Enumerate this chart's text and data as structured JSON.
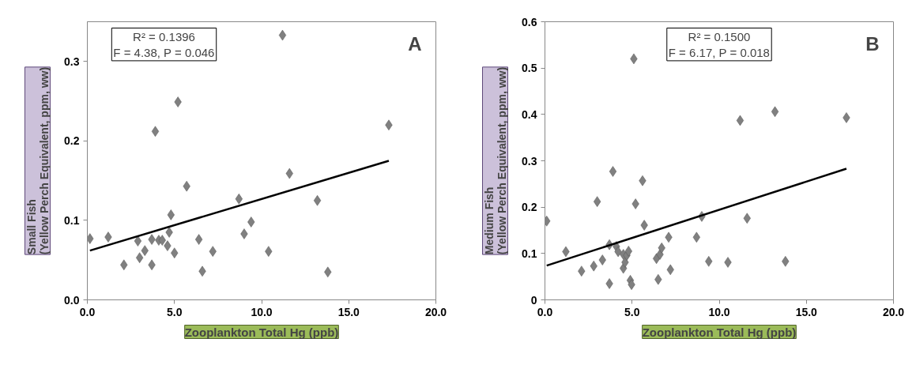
{
  "chart_data": [
    {
      "type": "scatter",
      "title": "A",
      "xlabel": "Zooplankton Total Hg (ppb)",
      "ylabel": "Small Fish\n(Yellow Perch Equivalent, ppm, ww)",
      "annotations": [
        "R² = 0.1396\nF = 4.38, P = 0.046"
      ],
      "xlim": [
        0,
        20
      ],
      "xticks": [
        {
          "value": 0,
          "label": "0.0"
        },
        {
          "value": 5,
          "label": "5.0"
        },
        {
          "value": 10,
          "label": "10.0"
        },
        {
          "value": 15,
          "label": "15.0"
        },
        {
          "value": 20,
          "label": "20.0"
        }
      ],
      "ylim": [
        0,
        0.35
      ],
      "yticks": [
        {
          "value": 0,
          "label": "0.0"
        },
        0.1,
        0.2,
        0.3
      ],
      "series": [
        {
          "marker": "diamond",
          "color": "#808080",
          "x": [
            0.15,
            1.2,
            2.1,
            2.9,
            3.0,
            3.3,
            3.7,
            3.7,
            3.9,
            4.1,
            4.3,
            4.6,
            4.7,
            4.8,
            5.0,
            5.2,
            5.7,
            6.4,
            6.6,
            7.2,
            8.7,
            9.0,
            9.4,
            10.4,
            11.2,
            11.6,
            13.2,
            13.8,
            17.3
          ],
          "values": [
            0.077,
            0.079,
            0.044,
            0.074,
            0.053,
            0.062,
            0.044,
            0.076,
            0.212,
            0.075,
            0.075,
            0.068,
            0.085,
            0.107,
            0.059,
            0.249,
            0.143,
            0.076,
            0.036,
            0.061,
            0.127,
            0.083,
            0.098,
            0.061,
            0.333,
            0.159,
            0.125,
            0.035,
            0.22
          ]
        },
        {
          "type": "line",
          "color": "#000000",
          "x": [
            0.15,
            17.3
          ],
          "values": [
            0.062,
            0.175
          ]
        }
      ]
    },
    {
      "type": "scatter",
      "title": "B",
      "xlabel": "Zooplankton Total Hg (ppb)",
      "ylabel": "Medium Fish\n(Yellow Perch Equivalent, ppm, ww)",
      "annotations": [
        "R² = 0.1500\nF = 6.17, P = 0.018"
      ],
      "xlim": [
        0,
        20
      ],
      "xticks": [
        {
          "value": 0,
          "label": "0.0"
        },
        {
          "value": 5,
          "label": "5.0"
        },
        {
          "value": 10,
          "label": "10.0"
        },
        {
          "value": 15,
          "label": "15.0"
        },
        {
          "value": 20,
          "label": "20.0"
        }
      ],
      "ylim": [
        0,
        0.6
      ],
      "yticks": [
        0,
        0.1,
        0.2,
        0.3,
        0.4,
        0.5,
        0.6
      ],
      "series": [
        {
          "marker": "diamond",
          "color": "#808080",
          "x": [
            0.1,
            1.2,
            2.1,
            2.8,
            3.0,
            3.3,
            3.7,
            3.7,
            3.9,
            4.1,
            4.2,
            4.5,
            4.5,
            4.6,
            4.7,
            4.8,
            4.9,
            4.97,
            5.1,
            5.2,
            5.6,
            5.7,
            6.4,
            6.5,
            6.6,
            6.7,
            7.1,
            7.2,
            8.7,
            9.0,
            9.4,
            10.5,
            11.2,
            11.6,
            13.2,
            13.8,
            17.3
          ],
          "values": [
            0.17,
            0.104,
            0.062,
            0.073,
            0.212,
            0.086,
            0.035,
            0.119,
            0.277,
            0.115,
            0.104,
            0.098,
            0.068,
            0.081,
            0.096,
            0.105,
            0.042,
            0.033,
            0.52,
            0.207,
            0.257,
            0.161,
            0.089,
            0.044,
            0.098,
            0.112,
            0.135,
            0.065,
            0.135,
            0.18,
            0.083,
            0.081,
            0.387,
            0.176,
            0.406,
            0.083,
            0.393
          ]
        },
        {
          "type": "line",
          "color": "#000000",
          "x": [
            0.1,
            17.3
          ],
          "values": [
            0.074,
            0.283
          ]
        }
      ]
    }
  ]
}
